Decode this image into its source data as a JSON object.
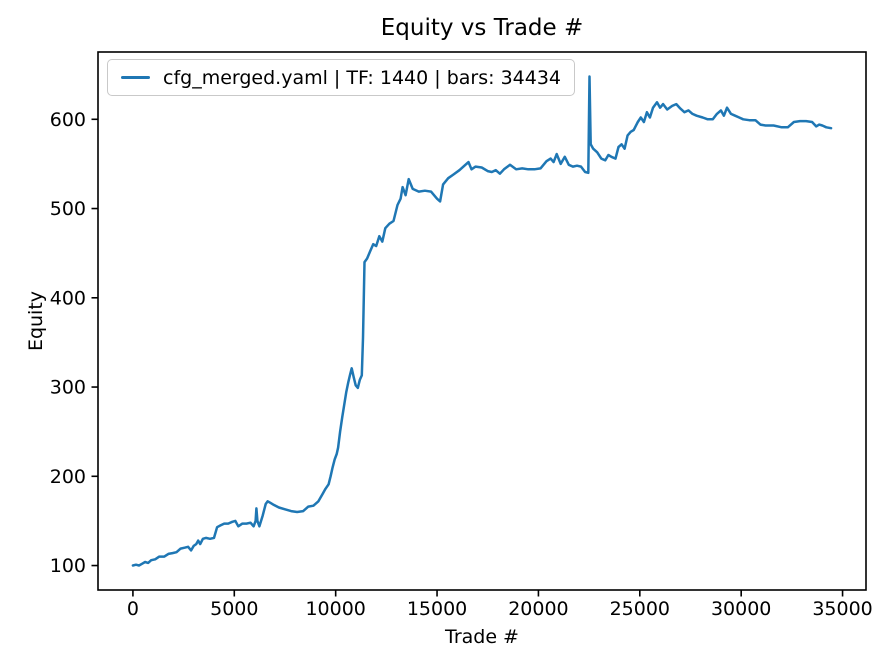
{
  "chart_data": {
    "type": "line",
    "title": "Equity vs Trade #",
    "xlabel": "Trade #",
    "ylabel": "Equity",
    "legend": [
      "cfg_merged.yaml | TF: 1440 | bars: 34434"
    ],
    "legend_position": "upper left",
    "grid": false,
    "line_color": "#1f77b4",
    "xlim": [
      -1722,
      36156
    ],
    "ylim": [
      72.6,
      675.4
    ],
    "xticks": [
      0,
      5000,
      10000,
      15000,
      20000,
      25000,
      30000,
      35000
    ],
    "yticks": [
      100,
      200,
      300,
      400,
      500,
      600
    ],
    "series": [
      {
        "name": "cfg_merged.yaml | TF: 1440 | bars: 34434",
        "points": [
          [
            0,
            100
          ],
          [
            150,
            101
          ],
          [
            300,
            100
          ],
          [
            450,
            102
          ],
          [
            600,
            104
          ],
          [
            750,
            103
          ],
          [
            900,
            106
          ],
          [
            1100,
            107
          ],
          [
            1300,
            110
          ],
          [
            1550,
            110
          ],
          [
            1750,
            113
          ],
          [
            1950,
            114
          ],
          [
            2150,
            115
          ],
          [
            2350,
            119
          ],
          [
            2550,
            120
          ],
          [
            2720,
            121
          ],
          [
            2870,
            117
          ],
          [
            3000,
            122
          ],
          [
            3120,
            124
          ],
          [
            3220,
            128
          ],
          [
            3320,
            124
          ],
          [
            3450,
            130
          ],
          [
            3600,
            131
          ],
          [
            3800,
            130
          ],
          [
            4000,
            131
          ],
          [
            4150,
            143
          ],
          [
            4320,
            145
          ],
          [
            4500,
            147
          ],
          [
            4700,
            147
          ],
          [
            4900,
            149
          ],
          [
            5050,
            150
          ],
          [
            5200,
            144
          ],
          [
            5400,
            147
          ],
          [
            5600,
            147
          ],
          [
            5800,
            148
          ],
          [
            5950,
            144
          ],
          [
            6050,
            150
          ],
          [
            6090,
            164
          ],
          [
            6140,
            150
          ],
          [
            6240,
            144
          ],
          [
            6400,
            156
          ],
          [
            6550,
            169
          ],
          [
            6650,
            172
          ],
          [
            6800,
            170
          ],
          [
            6950,
            168
          ],
          [
            7200,
            165
          ],
          [
            7500,
            163
          ],
          [
            7800,
            161
          ],
          [
            8100,
            160
          ],
          [
            8400,
            161
          ],
          [
            8650,
            166
          ],
          [
            8900,
            167
          ],
          [
            9150,
            172
          ],
          [
            9350,
            180
          ],
          [
            9500,
            186
          ],
          [
            9650,
            191
          ],
          [
            9750,
            200
          ],
          [
            9850,
            210
          ],
          [
            9950,
            219
          ],
          [
            10050,
            225
          ],
          [
            10120,
            232
          ],
          [
            10220,
            250
          ],
          [
            10320,
            266
          ],
          [
            10420,
            280
          ],
          [
            10520,
            294
          ],
          [
            10620,
            305
          ],
          [
            10700,
            313
          ],
          [
            10790,
            321
          ],
          [
            10890,
            311
          ],
          [
            10990,
            302
          ],
          [
            11090,
            299
          ],
          [
            11190,
            308
          ],
          [
            11290,
            313
          ],
          [
            11350,
            355
          ],
          [
            11420,
            440
          ],
          [
            11550,
            444
          ],
          [
            11700,
            452
          ],
          [
            11850,
            460
          ],
          [
            12000,
            458
          ],
          [
            12150,
            469
          ],
          [
            12300,
            463
          ],
          [
            12450,
            478
          ],
          [
            12650,
            483
          ],
          [
            12850,
            486
          ],
          [
            13050,
            504
          ],
          [
            13200,
            511
          ],
          [
            13300,
            524
          ],
          [
            13450,
            515
          ],
          [
            13600,
            533
          ],
          [
            13800,
            522
          ],
          [
            14100,
            519
          ],
          [
            14400,
            520
          ],
          [
            14700,
            519
          ],
          [
            15000,
            511
          ],
          [
            15150,
            508
          ],
          [
            15300,
            527
          ],
          [
            15550,
            534
          ],
          [
            15800,
            538
          ],
          [
            16100,
            543
          ],
          [
            16400,
            549
          ],
          [
            16550,
            552
          ],
          [
            16700,
            544
          ],
          [
            16900,
            547
          ],
          [
            17200,
            546
          ],
          [
            17500,
            542
          ],
          [
            17700,
            541
          ],
          [
            17900,
            543
          ],
          [
            18100,
            539
          ],
          [
            18300,
            544
          ],
          [
            18600,
            549
          ],
          [
            18900,
            544
          ],
          [
            19200,
            545
          ],
          [
            19500,
            544
          ],
          [
            19800,
            544
          ],
          [
            20100,
            545
          ],
          [
            20400,
            553
          ],
          [
            20600,
            556
          ],
          [
            20750,
            552
          ],
          [
            20900,
            561
          ],
          [
            21100,
            550
          ],
          [
            21300,
            558
          ],
          [
            21500,
            549
          ],
          [
            21700,
            547
          ],
          [
            21900,
            548
          ],
          [
            22100,
            547
          ],
          [
            22300,
            541
          ],
          [
            22460,
            540
          ],
          [
            22520,
            648
          ],
          [
            22580,
            572
          ],
          [
            22700,
            567
          ],
          [
            22900,
            563
          ],
          [
            23100,
            556
          ],
          [
            23300,
            554
          ],
          [
            23450,
            560
          ],
          [
            23600,
            558
          ],
          [
            23800,
            556
          ],
          [
            23950,
            569
          ],
          [
            24100,
            572
          ],
          [
            24250,
            567
          ],
          [
            24400,
            582
          ],
          [
            24550,
            586
          ],
          [
            24700,
            588
          ],
          [
            24900,
            597
          ],
          [
            25050,
            602
          ],
          [
            25200,
            597
          ],
          [
            25350,
            608
          ],
          [
            25500,
            602
          ],
          [
            25650,
            613
          ],
          [
            25850,
            619
          ],
          [
            26000,
            613
          ],
          [
            26150,
            617
          ],
          [
            26350,
            611
          ],
          [
            26600,
            615
          ],
          [
            26800,
            617
          ],
          [
            27000,
            612
          ],
          [
            27200,
            608
          ],
          [
            27400,
            610
          ],
          [
            27600,
            606
          ],
          [
            27800,
            604
          ],
          [
            28100,
            602
          ],
          [
            28350,
            600
          ],
          [
            28600,
            600
          ],
          [
            28800,
            606
          ],
          [
            29000,
            610
          ],
          [
            29150,
            604
          ],
          [
            29300,
            613
          ],
          [
            29500,
            606
          ],
          [
            29700,
            604
          ],
          [
            29900,
            602
          ],
          [
            30100,
            600
          ],
          [
            30400,
            599
          ],
          [
            30700,
            599
          ],
          [
            30950,
            594
          ],
          [
            31200,
            593
          ],
          [
            31600,
            593
          ],
          [
            32000,
            591
          ],
          [
            32300,
            591
          ],
          [
            32600,
            597
          ],
          [
            32900,
            598
          ],
          [
            33200,
            598
          ],
          [
            33500,
            597
          ],
          [
            33700,
            592
          ],
          [
            33850,
            594
          ],
          [
            34000,
            593
          ],
          [
            34200,
            591
          ],
          [
            34434,
            590
          ]
        ]
      }
    ]
  }
}
